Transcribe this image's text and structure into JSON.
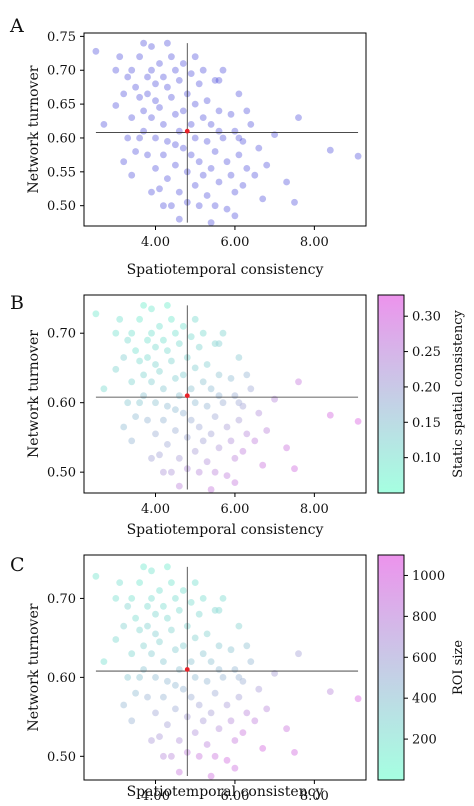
{
  "chart_data": [
    {
      "panel_label": "A",
      "type": "scatter",
      "xlabel": "Spatiotemporal consistency",
      "ylabel": "Network turnover",
      "xlim": [
        2.2,
        9.3
      ],
      "ylim": [
        0.47,
        0.755
      ],
      "xticks": [
        {
          "v": 4.0,
          "label": "4.00"
        },
        {
          "v": 6.0,
          "label": "6.00"
        },
        {
          "v": 8.0,
          "label": "8.00"
        }
      ],
      "yticks": [
        {
          "v": 0.5,
          "label": "0.50"
        },
        {
          "v": 0.55,
          "label": "0.55"
        },
        {
          "v": 0.6,
          "label": "0.60"
        },
        {
          "v": 0.65,
          "label": "0.65"
        },
        {
          "v": 0.7,
          "label": "0.70"
        },
        {
          "v": 0.75,
          "label": "0.75"
        }
      ],
      "crosshair": {
        "x": 4.8,
        "y": 0.608
      },
      "center_point": {
        "x": 4.8,
        "y": 0.61
      },
      "point_color": "#3a3ad8",
      "colorbar": null
    },
    {
      "panel_label": "B",
      "type": "scatter",
      "xlabel": "Spatiotemporal consistency",
      "ylabel": "Network turnover",
      "xlim": [
        2.2,
        9.3
      ],
      "ylim": [
        0.47,
        0.755
      ],
      "xticks": [
        {
          "v": 4.0,
          "label": "4.00"
        },
        {
          "v": 6.0,
          "label": "6.00"
        },
        {
          "v": 8.0,
          "label": "8.00"
        }
      ],
      "yticks": [
        {
          "v": 0.5,
          "label": "0.50"
        },
        {
          "v": 0.6,
          "label": "0.60"
        },
        {
          "v": 0.7,
          "label": "0.70"
        }
      ],
      "crosshair": {
        "x": 4.8,
        "y": 0.608
      },
      "center_point": {
        "x": 4.8,
        "y": 0.61
      },
      "colorbar": {
        "label": "Static spatial consistency",
        "min": 0.05,
        "max": 0.33,
        "ticks": [
          {
            "v": 0.1,
            "label": "0.10"
          },
          {
            "v": 0.15,
            "label": "0.15"
          },
          {
            "v": 0.2,
            "label": "0.20"
          },
          {
            "v": 0.25,
            "label": "0.25"
          },
          {
            "v": 0.3,
            "label": "0.30"
          }
        ]
      },
      "color_by": "static"
    },
    {
      "panel_label": "C",
      "type": "scatter",
      "xlabel": "Spatiotemporal consistency",
      "ylabel": "Network turnover",
      "xlim": [
        2.2,
        9.3
      ],
      "ylim": [
        0.47,
        0.755
      ],
      "xticks": [
        {
          "v": 4.0,
          "label": "4.00"
        },
        {
          "v": 6.0,
          "label": "6.00"
        },
        {
          "v": 8.0,
          "label": "8.00"
        }
      ],
      "yticks": [
        {
          "v": 0.5,
          "label": "0.50"
        },
        {
          "v": 0.6,
          "label": "0.60"
        },
        {
          "v": 0.7,
          "label": "0.70"
        }
      ],
      "crosshair": {
        "x": 4.8,
        "y": 0.608
      },
      "center_point": {
        "x": 4.8,
        "y": 0.61
      },
      "colorbar": {
        "label": "ROI size",
        "min": 0,
        "max": 1100,
        "ticks": [
          {
            "v": 200,
            "label": "200"
          },
          {
            "v": 400,
            "label": "400"
          },
          {
            "v": 600,
            "label": "600"
          },
          {
            "v": 800,
            "label": "800"
          },
          {
            "v": 1000,
            "label": "1000"
          }
        ]
      },
      "color_by": "roi"
    }
  ],
  "points": [
    {
      "x": 2.5,
      "y": 0.728,
      "s": 0.09,
      "r": 180
    },
    {
      "x": 2.7,
      "y": 0.62,
      "s": 0.11,
      "r": 200
    },
    {
      "x": 3.0,
      "y": 0.648,
      "s": 0.12,
      "r": 250
    },
    {
      "x": 3.1,
      "y": 0.72,
      "s": 0.1,
      "r": 210
    },
    {
      "x": 3.2,
      "y": 0.665,
      "s": 0.13,
      "r": 300
    },
    {
      "x": 3.3,
      "y": 0.69,
      "s": 0.11,
      "r": 280
    },
    {
      "x": 3.3,
      "y": 0.6,
      "s": 0.14,
      "r": 350
    },
    {
      "x": 3.4,
      "y": 0.7,
      "s": 0.1,
      "r": 190
    },
    {
      "x": 3.4,
      "y": 0.63,
      "s": 0.12,
      "r": 260
    },
    {
      "x": 3.5,
      "y": 0.675,
      "s": 0.1,
      "r": 230
    },
    {
      "x": 3.5,
      "y": 0.58,
      "s": 0.16,
      "r": 420
    },
    {
      "x": 3.6,
      "y": 0.66,
      "s": 0.11,
      "r": 270
    },
    {
      "x": 3.6,
      "y": 0.72,
      "s": 0.09,
      "r": 160
    },
    {
      "x": 3.7,
      "y": 0.74,
      "s": 0.08,
      "r": 150
    },
    {
      "x": 3.7,
      "y": 0.64,
      "s": 0.12,
      "r": 300
    },
    {
      "x": 3.7,
      "y": 0.61,
      "s": 0.15,
      "r": 380
    },
    {
      "x": 3.8,
      "y": 0.69,
      "s": 0.1,
      "r": 240
    },
    {
      "x": 3.8,
      "y": 0.665,
      "s": 0.11,
      "r": 290
    },
    {
      "x": 3.8,
      "y": 0.575,
      "s": 0.17,
      "r": 500
    },
    {
      "x": 3.9,
      "y": 0.735,
      "s": 0.09,
      "r": 170
    },
    {
      "x": 3.9,
      "y": 0.7,
      "s": 0.1,
      "r": 220
    },
    {
      "x": 3.9,
      "y": 0.63,
      "s": 0.13,
      "r": 330
    },
    {
      "x": 4.0,
      "y": 0.68,
      "s": 0.11,
      "r": 260
    },
    {
      "x": 4.0,
      "y": 0.655,
      "s": 0.12,
      "r": 310
    },
    {
      "x": 4.0,
      "y": 0.6,
      "s": 0.15,
      "r": 420
    },
    {
      "x": 4.0,
      "y": 0.555,
      "s": 0.18,
      "r": 560
    },
    {
      "x": 4.1,
      "y": 0.71,
      "s": 0.1,
      "r": 200
    },
    {
      "x": 4.1,
      "y": 0.645,
      "s": 0.12,
      "r": 290
    },
    {
      "x": 4.1,
      "y": 0.525,
      "s": 0.2,
      "r": 650
    },
    {
      "x": 4.2,
      "y": 0.69,
      "s": 0.1,
      "r": 230
    },
    {
      "x": 4.2,
      "y": 0.62,
      "s": 0.14,
      "r": 360
    },
    {
      "x": 4.2,
      "y": 0.575,
      "s": 0.17,
      "r": 480
    },
    {
      "x": 4.3,
      "y": 0.675,
      "s": 0.11,
      "r": 250
    },
    {
      "x": 4.3,
      "y": 0.595,
      "s": 0.16,
      "r": 440
    },
    {
      "x": 4.3,
      "y": 0.54,
      "s": 0.19,
      "r": 600
    },
    {
      "x": 4.4,
      "y": 0.72,
      "s": 0.09,
      "r": 180
    },
    {
      "x": 4.4,
      "y": 0.66,
      "s": 0.12,
      "r": 280
    },
    {
      "x": 4.4,
      "y": 0.5,
      "s": 0.22,
      "r": 760
    },
    {
      "x": 4.5,
      "y": 0.7,
      "s": 0.1,
      "r": 220
    },
    {
      "x": 4.5,
      "y": 0.635,
      "s": 0.13,
      "r": 330
    },
    {
      "x": 4.5,
      "y": 0.56,
      "s": 0.18,
      "r": 540
    },
    {
      "x": 4.6,
      "y": 0.685,
      "s": 0.11,
      "r": 240
    },
    {
      "x": 4.6,
      "y": 0.61,
      "s": 0.15,
      "r": 400
    },
    {
      "x": 4.6,
      "y": 0.52,
      "s": 0.21,
      "r": 700
    },
    {
      "x": 4.7,
      "y": 0.71,
      "s": 0.1,
      "r": 200
    },
    {
      "x": 4.7,
      "y": 0.64,
      "s": 0.13,
      "r": 320
    },
    {
      "x": 4.7,
      "y": 0.585,
      "s": 0.17,
      "r": 470
    },
    {
      "x": 4.8,
      "y": 0.665,
      "s": 0.12,
      "r": 280
    },
    {
      "x": 4.8,
      "y": 0.55,
      "s": 0.19,
      "r": 620
    },
    {
      "x": 4.8,
      "y": 0.505,
      "s": 0.23,
      "r": 820
    },
    {
      "x": 4.9,
      "y": 0.695,
      "s": 0.11,
      "r": 230
    },
    {
      "x": 4.9,
      "y": 0.62,
      "s": 0.15,
      "r": 390
    },
    {
      "x": 4.9,
      "y": 0.575,
      "s": 0.18,
      "r": 520
    },
    {
      "x": 5.0,
      "y": 0.65,
      "s": 0.13,
      "r": 300
    },
    {
      "x": 5.0,
      "y": 0.6,
      "s": 0.16,
      "r": 430
    },
    {
      "x": 5.0,
      "y": 0.53,
      "s": 0.21,
      "r": 690
    },
    {
      "x": 5.1,
      "y": 0.68,
      "s": 0.12,
      "r": 260
    },
    {
      "x": 5.1,
      "y": 0.565,
      "s": 0.19,
      "r": 580
    },
    {
      "x": 5.1,
      "y": 0.5,
      "s": 0.24,
      "r": 880
    },
    {
      "x": 5.2,
      "y": 0.7,
      "s": 0.11,
      "r": 220
    },
    {
      "x": 5.2,
      "y": 0.63,
      "s": 0.15,
      "r": 370
    },
    {
      "x": 5.2,
      "y": 0.545,
      "s": 0.2,
      "r": 640
    },
    {
      "x": 5.3,
      "y": 0.655,
      "s": 0.13,
      "r": 300
    },
    {
      "x": 5.3,
      "y": 0.595,
      "s": 0.17,
      "r": 460
    },
    {
      "x": 5.3,
      "y": 0.515,
      "s": 0.23,
      "r": 800
    },
    {
      "x": 5.4,
      "y": 0.62,
      "s": 0.16,
      "r": 410
    },
    {
      "x": 5.4,
      "y": 0.555,
      "s": 0.2,
      "r": 620
    },
    {
      "x": 5.5,
      "y": 0.685,
      "s": 0.12,
      "r": 260
    },
    {
      "x": 5.5,
      "y": 0.58,
      "s": 0.19,
      "r": 540
    },
    {
      "x": 5.5,
      "y": 0.5,
      "s": 0.25,
      "r": 900
    },
    {
      "x": 5.6,
      "y": 0.64,
      "s": 0.15,
      "r": 360
    },
    {
      "x": 5.6,
      "y": 0.535,
      "s": 0.22,
      "r": 720
    },
    {
      "x": 5.7,
      "y": 0.7,
      "s": 0.12,
      "r": 240
    },
    {
      "x": 5.7,
      "y": 0.6,
      "s": 0.18,
      "r": 480
    },
    {
      "x": 5.8,
      "y": 0.565,
      "s": 0.21,
      "r": 640
    },
    {
      "x": 5.8,
      "y": 0.495,
      "s": 0.26,
      "r": 950
    },
    {
      "x": 5.9,
      "y": 0.635,
      "s": 0.16,
      "r": 380
    },
    {
      "x": 5.9,
      "y": 0.545,
      "s": 0.23,
      "r": 740
    },
    {
      "x": 6.0,
      "y": 0.61,
      "s": 0.18,
      "r": 460
    },
    {
      "x": 6.0,
      "y": 0.52,
      "s": 0.25,
      "r": 860
    },
    {
      "x": 6.1,
      "y": 0.665,
      "s": 0.14,
      "r": 300
    },
    {
      "x": 6.1,
      "y": 0.575,
      "s": 0.21,
      "r": 600
    },
    {
      "x": 6.2,
      "y": 0.595,
      "s": 0.2,
      "r": 520
    },
    {
      "x": 6.2,
      "y": 0.53,
      "s": 0.26,
      "r": 900
    },
    {
      "x": 6.3,
      "y": 0.555,
      "s": 0.24,
      "r": 780
    },
    {
      "x": 6.4,
      "y": 0.62,
      "s": 0.19,
      "r": 460
    },
    {
      "x": 6.5,
      "y": 0.545,
      "s": 0.26,
      "r": 820
    },
    {
      "x": 6.6,
      "y": 0.585,
      "s": 0.23,
      "r": 640
    },
    {
      "x": 6.7,
      "y": 0.51,
      "s": 0.28,
      "r": 980
    },
    {
      "x": 7.0,
      "y": 0.605,
      "s": 0.24,
      "r": 620
    },
    {
      "x": 7.3,
      "y": 0.535,
      "s": 0.28,
      "r": 900
    },
    {
      "x": 7.5,
      "y": 0.505,
      "s": 0.29,
      "r": 960
    },
    {
      "x": 7.6,
      "y": 0.63,
      "s": 0.27,
      "r": 600
    },
    {
      "x": 8.4,
      "y": 0.582,
      "s": 0.3,
      "r": 760
    },
    {
      "x": 9.1,
      "y": 0.573,
      "s": 0.31,
      "r": 1020
    },
    {
      "x": 3.2,
      "y": 0.565,
      "s": 0.16,
      "r": 460
    },
    {
      "x": 3.4,
      "y": 0.545,
      "s": 0.17,
      "r": 500
    },
    {
      "x": 3.6,
      "y": 0.6,
      "s": 0.14,
      "r": 380
    },
    {
      "x": 4.2,
      "y": 0.5,
      "s": 0.22,
      "r": 740
    },
    {
      "x": 4.6,
      "y": 0.48,
      "s": 0.25,
      "r": 880
    },
    {
      "x": 5.4,
      "y": 0.475,
      "s": 0.27,
      "r": 940
    },
    {
      "x": 6.0,
      "y": 0.485,
      "s": 0.27,
      "r": 920
    },
    {
      "x": 3.0,
      "y": 0.7,
      "s": 0.1,
      "r": 210
    },
    {
      "x": 4.3,
      "y": 0.74,
      "s": 0.08,
      "r": 140
    },
    {
      "x": 5.0,
      "y": 0.72,
      "s": 0.11,
      "r": 200
    },
    {
      "x": 5.6,
      "y": 0.685,
      "s": 0.13,
      "r": 260
    },
    {
      "x": 6.3,
      "y": 0.64,
      "s": 0.17,
      "r": 400
    },
    {
      "x": 6.8,
      "y": 0.56,
      "s": 0.25,
      "r": 760
    },
    {
      "x": 3.9,
      "y": 0.52,
      "s": 0.2,
      "r": 660
    },
    {
      "x": 4.5,
      "y": 0.59,
      "s": 0.16,
      "r": 450
    },
    {
      "x": 5.6,
      "y": 0.61,
      "s": 0.17,
      "r": 440
    },
    {
      "x": 6.1,
      "y": 0.6,
      "s": 0.19,
      "r": 500
    }
  ]
}
